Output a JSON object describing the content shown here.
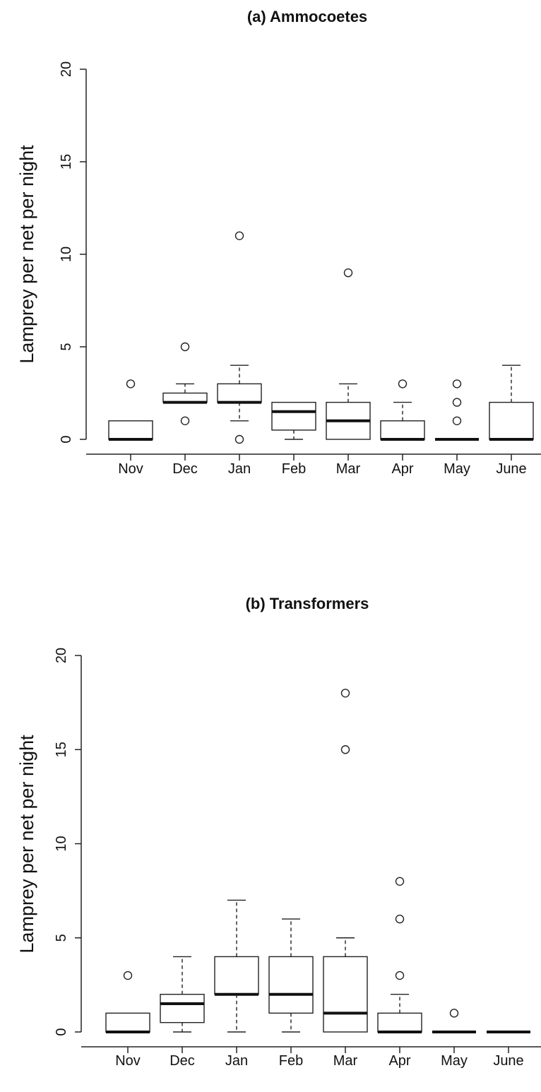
{
  "chart_data": [
    {
      "type": "box",
      "title": "(a) Ammocoetes",
      "ylabel": "Lamprey per net per night",
      "ylim": [
        0,
        20
      ],
      "yticks": [
        "0",
        "5",
        "10",
        "15",
        "20"
      ],
      "categories": [
        "Nov",
        "Dec",
        "Jan",
        "Feb",
        "Mar",
        "Apr",
        "May",
        "June"
      ],
      "boxes": [
        {
          "min": 0,
          "q1": 0,
          "median": 0,
          "q3": 1,
          "max": 1,
          "outliers": [
            3
          ]
        },
        {
          "min": 2,
          "q1": 2,
          "median": 2,
          "q3": 2.5,
          "max": 3,
          "outliers": [
            5,
            1
          ]
        },
        {
          "min": 1,
          "q1": 2,
          "median": 2,
          "q3": 3,
          "max": 4,
          "outliers": [
            11,
            0
          ]
        },
        {
          "min": 0,
          "q1": 0.5,
          "median": 1.5,
          "q3": 2,
          "max": 2,
          "outliers": []
        },
        {
          "min": 0,
          "q1": 0,
          "median": 1,
          "q3": 2,
          "max": 3,
          "outliers": [
            9
          ]
        },
        {
          "min": 0,
          "q1": 0,
          "median": 0,
          "q3": 1,
          "max": 2,
          "outliers": [
            3
          ]
        },
        {
          "min": 0,
          "q1": 0,
          "median": 0,
          "q3": 0,
          "max": 0,
          "outliers": [
            3,
            2,
            1
          ]
        },
        {
          "min": 0,
          "q1": 0,
          "median": 0,
          "q3": 2,
          "max": 4,
          "outliers": []
        }
      ]
    },
    {
      "type": "box",
      "title": "(b) Transformers",
      "ylabel": "Lamprey per net per night",
      "ylim": [
        0,
        20
      ],
      "yticks": [
        "0",
        "5",
        "10",
        "15",
        "20"
      ],
      "categories": [
        "Nov",
        "Dec",
        "Jan",
        "Feb",
        "Mar",
        "Apr",
        "May",
        "June"
      ],
      "boxes": [
        {
          "min": 0,
          "q1": 0,
          "median": 0,
          "q3": 1,
          "max": 1,
          "outliers": [
            3
          ]
        },
        {
          "min": 0,
          "q1": 0.5,
          "median": 1.5,
          "q3": 2,
          "max": 4,
          "outliers": []
        },
        {
          "min": 0,
          "q1": 2,
          "median": 2,
          "q3": 4,
          "max": 7,
          "outliers": []
        },
        {
          "min": 0,
          "q1": 1,
          "median": 2,
          "q3": 4,
          "max": 6,
          "outliers": []
        },
        {
          "min": 0,
          "q1": 0,
          "median": 1,
          "q3": 4,
          "max": 5,
          "outliers": [
            18,
            15
          ]
        },
        {
          "min": 0,
          "q1": 0,
          "median": 0,
          "q3": 1,
          "max": 2,
          "outliers": [
            8,
            6,
            3
          ]
        },
        {
          "min": 0,
          "q1": 0,
          "median": 0,
          "q3": 0,
          "max": 0,
          "outliers": [
            1
          ]
        },
        {
          "min": 0,
          "q1": 0,
          "median": 0,
          "q3": 0,
          "max": 0,
          "outliers": []
        }
      ]
    }
  ]
}
